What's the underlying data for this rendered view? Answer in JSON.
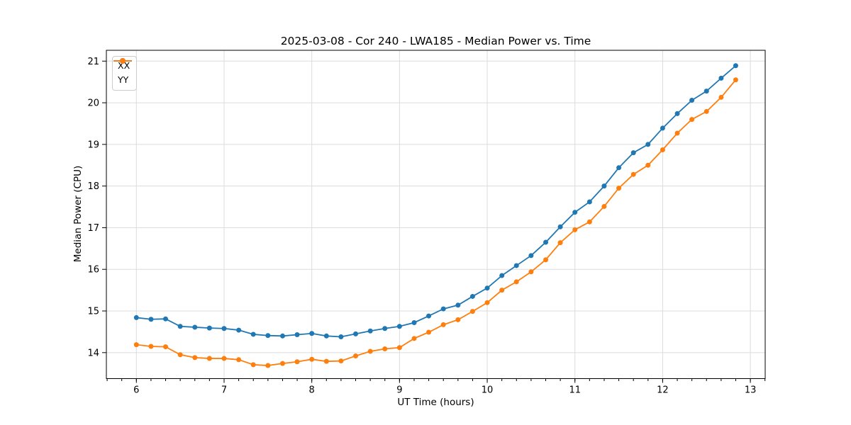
{
  "chart_data": {
    "type": "line",
    "title": "2025-03-08 - Cor 240 - LWA185 - Median Power vs. Time",
    "xlabel": "UT Time (hours)",
    "ylabel": "Median Power (CPU)",
    "xlim": [
      5.658,
      13.169
    ],
    "ylim": [
      13.376,
      21.26
    ],
    "x_major_ticks": [
      6,
      7,
      8,
      9,
      10,
      11,
      12,
      13
    ],
    "y_major_ticks": [
      14,
      15,
      16,
      17,
      18,
      19,
      20,
      21
    ],
    "x_minor_step": 0.166667,
    "grid": "major-only",
    "legend_position": "upper-left",
    "marker": "circle",
    "x": [
      6.0,
      6.167,
      6.333,
      6.5,
      6.667,
      6.833,
      7.0,
      7.167,
      7.333,
      7.5,
      7.667,
      7.833,
      8.0,
      8.167,
      8.333,
      8.5,
      8.667,
      8.833,
      9.0,
      9.167,
      9.333,
      9.5,
      9.667,
      9.833,
      10.0,
      10.167,
      10.333,
      10.5,
      10.667,
      10.833,
      11.0,
      11.167,
      11.333,
      11.5,
      11.667,
      11.833,
      12.0,
      12.167,
      12.333,
      12.5,
      12.667,
      12.833
    ],
    "series": [
      {
        "name": "XX",
        "color": "#1f77b4",
        "values": [
          14.84,
          14.8,
          14.81,
          14.63,
          14.61,
          14.59,
          14.58,
          14.54,
          14.44,
          14.41,
          14.4,
          14.43,
          14.46,
          14.4,
          14.38,
          14.45,
          14.52,
          14.58,
          14.63,
          14.72,
          14.88,
          15.05,
          15.14,
          15.35,
          15.55,
          15.85,
          16.09,
          16.33,
          16.65,
          17.02,
          17.37,
          17.62,
          18.0,
          18.44,
          18.8,
          19.0,
          19.39,
          19.74,
          20.06,
          20.28,
          20.59,
          20.89
        ]
      },
      {
        "name": "YY",
        "color": "#ff7f0e",
        "values": [
          14.19,
          14.15,
          14.14,
          13.95,
          13.88,
          13.86,
          13.86,
          13.83,
          13.71,
          13.69,
          13.74,
          13.78,
          13.84,
          13.79,
          13.8,
          13.92,
          14.03,
          14.09,
          14.12,
          14.34,
          14.49,
          14.67,
          14.79,
          14.99,
          15.2,
          15.5,
          15.7,
          15.94,
          16.23,
          16.64,
          16.95,
          17.14,
          17.51,
          17.95,
          18.28,
          18.5,
          18.87,
          19.27,
          19.6,
          19.79,
          20.13,
          20.55
        ]
      }
    ]
  },
  "colors": {
    "background": "#ffffff",
    "grid": "#dcdcdc",
    "spine": "#000000",
    "text": "#000000"
  }
}
